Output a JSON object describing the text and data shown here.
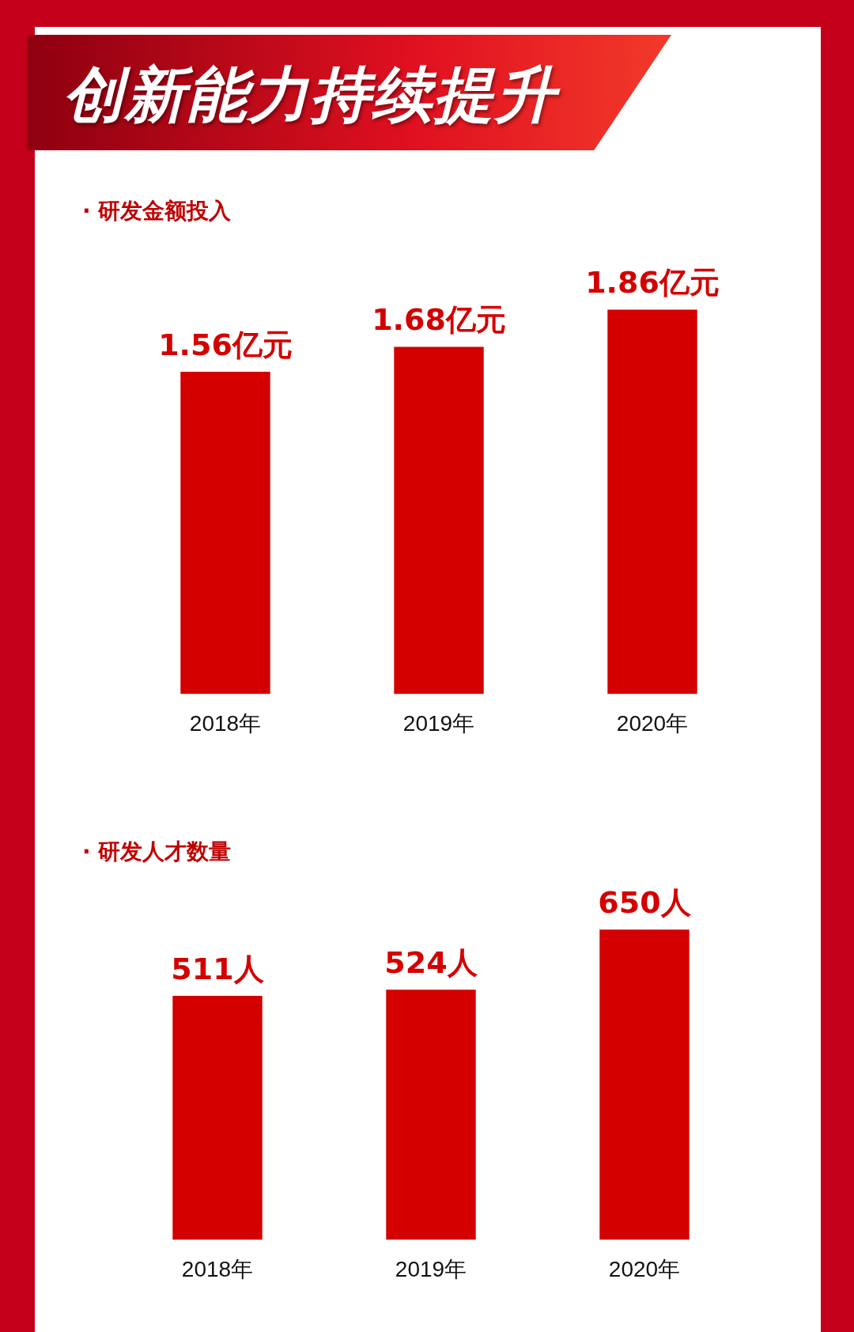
{
  "chart_data": [
    {
      "type": "bar",
      "title": "创新能力持续提升",
      "subtitle": "· 研发金额投入",
      "categories": [
        "2018年",
        "2019年",
        "2020年"
      ],
      "values": [
        1.56,
        1.68,
        1.86
      ],
      "value_labels": [
        "1.56亿元",
        "1.68亿元",
        "1.86亿元"
      ],
      "color": "#d40000",
      "grid": false,
      "legend": false
    },
    {
      "type": "bar",
      "subtitle": "· 研发人才数量",
      "categories": [
        "2018年",
        "2019年",
        "2020年"
      ],
      "values": [
        511,
        524,
        650
      ],
      "value_labels": [
        "511人",
        "524人",
        "650人"
      ],
      "color": "#d40000",
      "grid": false,
      "legend": false
    }
  ]
}
